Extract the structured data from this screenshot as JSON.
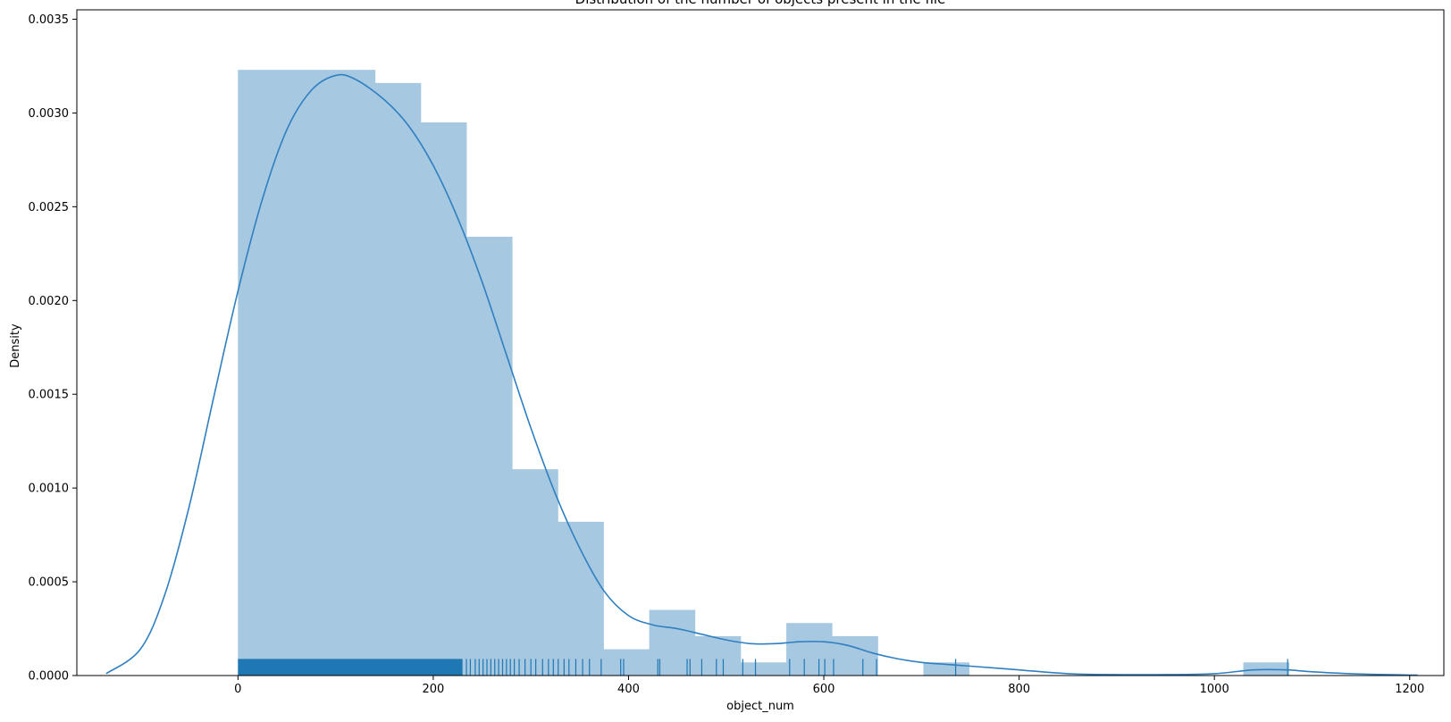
{
  "chart_data": {
    "type": "bar",
    "title": "Distribution of the number of objects present in the file",
    "xlabel": "object_num",
    "ylabel": "Density",
    "xlim": [
      -165,
      1235
    ],
    "ylim": [
      0,
      0.00355
    ],
    "xticks": [
      0,
      200,
      400,
      600,
      800,
      1000,
      1200
    ],
    "yticks": [
      0.0,
      0.0005,
      0.001,
      0.0015,
      0.002,
      0.0025,
      0.003,
      0.0035
    ],
    "ytick_labels": [
      "0.0000",
      "0.0005",
      "0.0010",
      "0.0015",
      "0.0020",
      "0.0025",
      "0.0030",
      "0.0035"
    ],
    "grid": false,
    "colors": {
      "bar_fill": "#a6c8e0",
      "kde_line": "#2f7fc1",
      "rug": "#1f77b4"
    },
    "histogram": {
      "bin_edges": [
        0,
        46.8,
        93.6,
        140.4,
        187.2,
        234,
        280.8,
        327.6,
        374.4,
        421.2,
        468,
        514.8,
        561.6,
        608.4,
        655.2,
        702,
        748.8,
        795.6,
        842.4,
        889.2,
        936,
        982.8,
        1029.6,
        1076.4
      ],
      "densities": [
        0.00323,
        0.00323,
        0.00323,
        0.00316,
        0.00295,
        0.00234,
        0.0011,
        0.00082,
        0.00014,
        0.00035,
        0.00021,
        7e-05,
        0.00028,
        0.00021,
        0,
        7e-05,
        0,
        0,
        0,
        0,
        0,
        0,
        7e-05
      ]
    },
    "kde": {
      "x": [
        -135,
        -100,
        -75,
        -50,
        -25,
        0,
        25,
        50,
        75,
        100,
        120,
        150,
        175,
        200,
        225,
        250,
        275,
        300,
        325,
        350,
        375,
        400,
        425,
        450,
        475,
        500,
        525,
        550,
        575,
        600,
        625,
        650,
        675,
        700,
        725,
        750,
        800,
        850,
        900,
        950,
        1000,
        1040,
        1075,
        1100,
        1150,
        1208
      ],
      "y": [
        1e-05,
        0.00014,
        0.00043,
        0.0009,
        0.00148,
        0.00205,
        0.00254,
        0.00291,
        0.00312,
        0.0032,
        0.00318,
        0.00307,
        0.00293,
        0.00272,
        0.00244,
        0.0021,
        0.00171,
        0.00132,
        0.00097,
        0.00068,
        0.00045,
        0.00032,
        0.00027,
        0.00025,
        0.00022,
        0.00019,
        0.00017,
        0.00017,
        0.00018,
        0.00018,
        0.00016,
        0.00012,
        9e-05,
        7e-05,
        6e-05,
        5e-05,
        3e-05,
        1e-05,
        5e-06,
        5e-06,
        1e-05,
        3e-05,
        3e-05,
        2e-05,
        8e-06,
        2e-06
      ]
    },
    "rug": {
      "dense_range": [
        0,
        230
      ],
      "points": [
        234,
        238,
        243,
        247,
        251,
        255,
        259,
        263,
        267,
        271,
        275,
        279,
        283,
        288,
        294,
        300,
        305,
        312,
        318,
        323,
        328,
        334,
        339,
        346,
        353,
        360,
        372,
        392,
        395,
        430,
        432,
        460,
        463,
        475,
        490,
        497,
        517,
        530,
        565,
        580,
        595,
        601,
        610,
        640,
        654,
        735,
        1075
      ]
    }
  }
}
